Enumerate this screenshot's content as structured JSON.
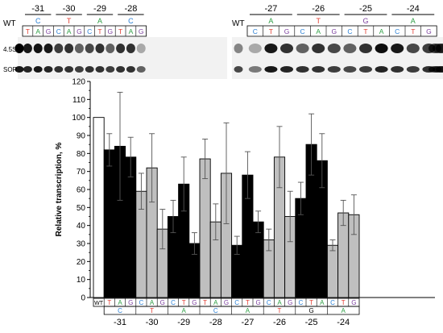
{
  "gel": {
    "wt_label": "WT",
    "row_labels": [
      "4.5SI",
      "SOR"
    ],
    "left_panel": {
      "positions": [
        "-31",
        "-30",
        "-29",
        "-28"
      ],
      "wildtype_bases": [
        {
          "base": "C",
          "color": "#2a7fd4"
        },
        {
          "base": "T",
          "color": "#e03c31"
        },
        {
          "base": "A",
          "color": "#2e9e44"
        },
        {
          "base": "C",
          "color": "#2a7fd4"
        }
      ],
      "lanes": [
        "T",
        "A",
        "G",
        "C",
        "A",
        "G",
        "C",
        "T",
        "G",
        "T",
        "A",
        "G"
      ]
    },
    "right_panel": {
      "positions": [
        "-27",
        "-26",
        "-25",
        "-24"
      ],
      "wildtype_bases": [
        {
          "base": "A",
          "color": "#2e9e44"
        },
        {
          "base": "T",
          "color": "#e03c31"
        },
        {
          "base": "G",
          "color": "#7b3f9e"
        },
        {
          "base": "A",
          "color": "#2e9e44"
        }
      ],
      "lanes": [
        "C",
        "T",
        "G",
        "C",
        "A",
        "G",
        "C",
        "T",
        "A",
        "C",
        "T",
        "G"
      ]
    },
    "top_band_intensity": [
      1.0,
      0.9,
      0.92,
      0.9,
      0.75,
      0.8,
      0.6,
      0.7,
      0.8,
      0.6,
      0.8,
      0.8,
      0.3,
      0.45,
      0.3,
      0.9,
      0.8,
      0.6,
      0.8,
      0.7,
      0.6,
      0.8,
      0.95,
      0.9,
      0.7,
      0.75,
      0.7,
      0.65,
      0.7
    ],
    "bottom_band_intensity": [
      0.9,
      0.85,
      0.9,
      0.85,
      0.8,
      0.8,
      0.75,
      0.8,
      0.8,
      0.75,
      0.8,
      0.8,
      0.6,
      0.7,
      0.5,
      0.9,
      0.85,
      0.8,
      0.8,
      0.75,
      0.7,
      0.75,
      0.85,
      0.8,
      0.75,
      0.8,
      0.75,
      0.7,
      0.75
    ]
  },
  "colors": {
    "A": "#2e9e44",
    "C": "#2a7fd4",
    "G": "#7b3f9e",
    "T": "#e03c31",
    "bar_black": "#000000",
    "bar_gray": "#bfbfbf",
    "bar_white": "#ffffff"
  },
  "chart_data": {
    "type": "bar",
    "ylabel": "Relative transcription, %",
    "ylim": [
      0,
      120
    ],
    "yticks": [
      0,
      10,
      20,
      30,
      40,
      50,
      60,
      70,
      80,
      90,
      100,
      110,
      120
    ],
    "wt_label": "WT",
    "groups": [
      {
        "position": "-31",
        "wt_base": "C",
        "fill": "black",
        "bars": [
          {
            "base": "T",
            "value": 82,
            "err": 9
          },
          {
            "base": "A",
            "value": 84,
            "err": 30
          },
          {
            "base": "G",
            "value": 78,
            "err": 11
          }
        ]
      },
      {
        "position": "-30",
        "wt_base": "T",
        "fill": "gray",
        "bars": [
          {
            "base": "C",
            "value": 59,
            "err": 10
          },
          {
            "base": "A",
            "value": 72,
            "err": 19
          },
          {
            "base": "G",
            "value": 38,
            "err": 11
          }
        ]
      },
      {
        "position": "-29",
        "wt_base": "A",
        "fill": "black",
        "bars": [
          {
            "base": "C",
            "value": 45,
            "err": 9
          },
          {
            "base": "T",
            "value": 63,
            "err": 15
          },
          {
            "base": "G",
            "value": 30,
            "err": 6
          }
        ]
      },
      {
        "position": "-28",
        "wt_base": "C",
        "fill": "gray",
        "bars": [
          {
            "base": "T",
            "value": 77,
            "err": 11
          },
          {
            "base": "A",
            "value": 42,
            "err": 10
          },
          {
            "base": "G",
            "value": 69,
            "err": 28
          }
        ]
      },
      {
        "position": "-27",
        "wt_base": "A",
        "fill": "black",
        "bars": [
          {
            "base": "C",
            "value": 29,
            "err": 5
          },
          {
            "base": "T",
            "value": 68,
            "err": 13
          },
          {
            "base": "G",
            "value": 42,
            "err": 6
          }
        ]
      },
      {
        "position": "-26",
        "wt_base": "T",
        "fill": "gray",
        "bars": [
          {
            "base": "C",
            "value": 32,
            "err": 6
          },
          {
            "base": "A",
            "value": 78,
            "err": 17
          },
          {
            "base": "G",
            "value": 45,
            "err": 14
          }
        ]
      },
      {
        "position": "-25",
        "wt_base": "G",
        "fill": "black",
        "bars": [
          {
            "base": "C",
            "value": 55,
            "err": 9
          },
          {
            "base": "T",
            "value": 85,
            "err": 17
          },
          {
            "base": "A",
            "value": 76,
            "err": 15
          }
        ]
      },
      {
        "position": "-24",
        "wt_base": "A",
        "fill": "gray",
        "bars": [
          {
            "base": "C",
            "value": 29,
            "err": 3
          },
          {
            "base": "T",
            "value": 47,
            "err": 7
          },
          {
            "base": "G",
            "value": 46,
            "err": 11
          }
        ]
      }
    ],
    "wt": {
      "value": 100,
      "err": 0
    }
  }
}
